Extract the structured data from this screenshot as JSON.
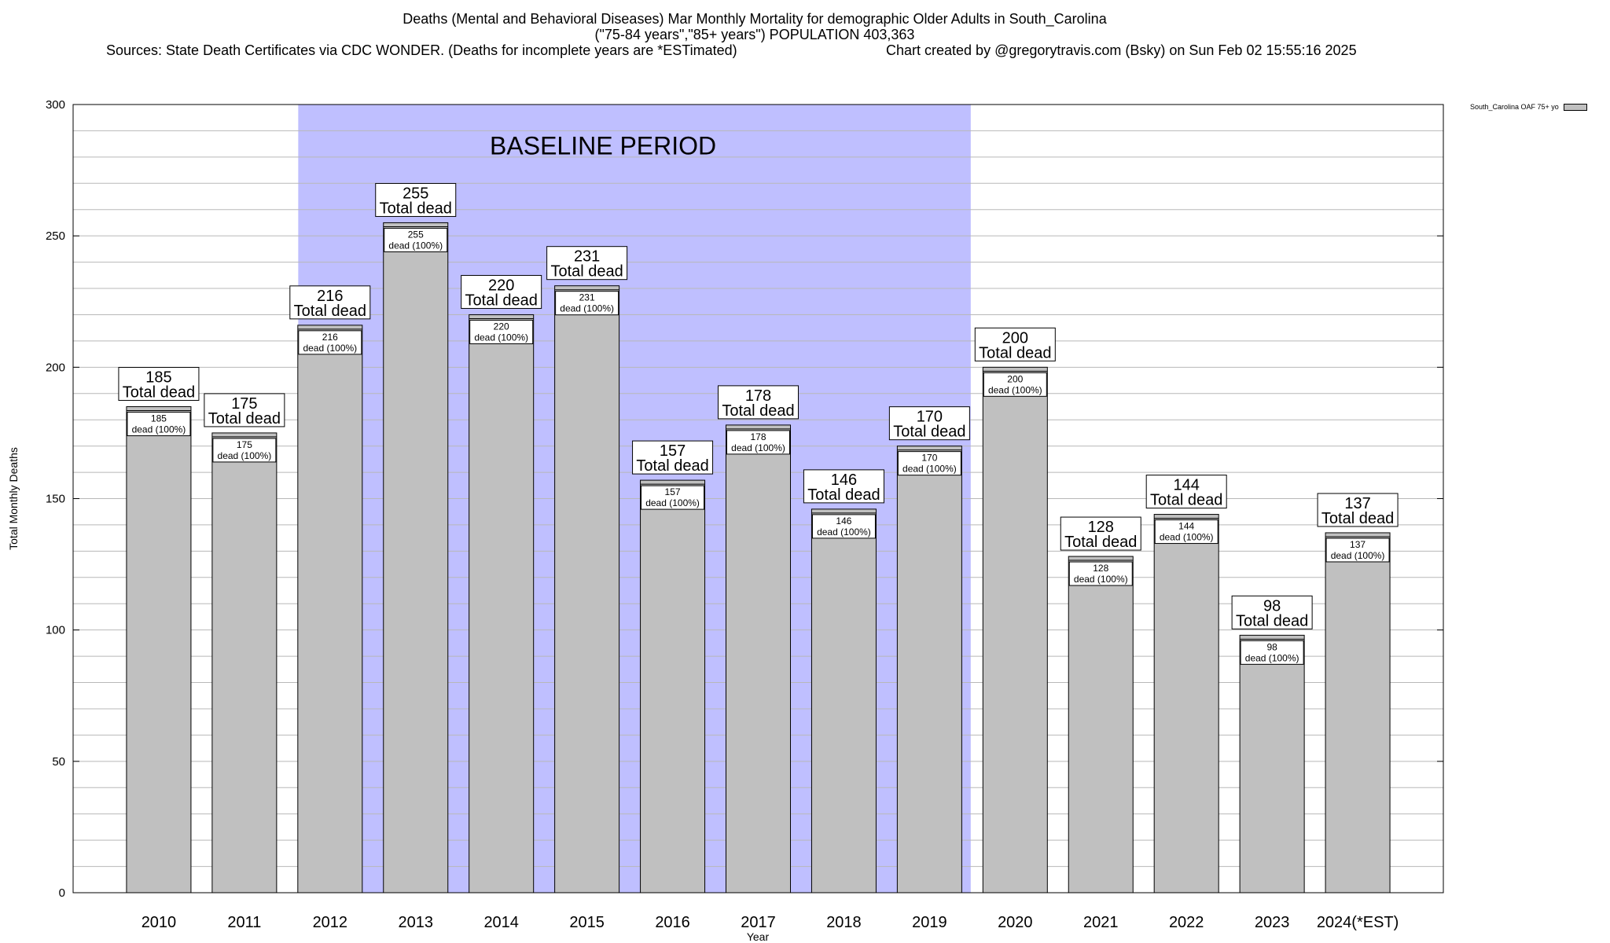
{
  "header": {
    "title_line1": "Deaths (Mental and Behavioral Diseases) Mar Monthly Mortality for demographic Older Adults in South_Carolina",
    "title_line2": "(\"75-84 years\",\"85+ years\") POPULATION 403,363",
    "sources": "Sources: State Death Certificates via CDC WONDER. (Deaths for incomplete years are *ESTimated)",
    "credit": "Chart created by @gregorytravis.com (Bsky) on Sun Feb 02 15:55:16 2025"
  },
  "colors": {
    "bar_fill": "#c0c0c0",
    "baseline_band": "#bfbfff",
    "gridline": "#b8b8b8"
  },
  "chart_data": {
    "type": "bar",
    "title": "Deaths (Mental and Behavioral Diseases) Mar Monthly Mortality for demographic Older Adults in South_Carolina",
    "xlabel": "Year",
    "ylabel": "Total Monthly Deaths",
    "ylim": [
      0,
      300
    ],
    "y_ticks": [
      0,
      50,
      100,
      150,
      200,
      250,
      300
    ],
    "grid": true,
    "legend": {
      "position": "top-right",
      "entries": [
        "South_Carolina OAF 75+ yo"
      ]
    },
    "categories": [
      "2010",
      "2011",
      "2012",
      "2013",
      "2014",
      "2015",
      "2016",
      "2017",
      "2018",
      "2019",
      "2020",
      "2021",
      "2022",
      "2023",
      "2024(*EST)"
    ],
    "series": [
      {
        "name": "South_Carolina OAF 75+ yo",
        "values": [
          185,
          175,
          216,
          255,
          220,
          231,
          157,
          178,
          146,
          170,
          200,
          128,
          144,
          98,
          137
        ]
      }
    ],
    "total_label": "Total dead",
    "inner_label_suffix": "dead (100%)",
    "baseline_period": {
      "label": "BASELINE PERIOD",
      "from": "2012",
      "to": "2019"
    }
  }
}
